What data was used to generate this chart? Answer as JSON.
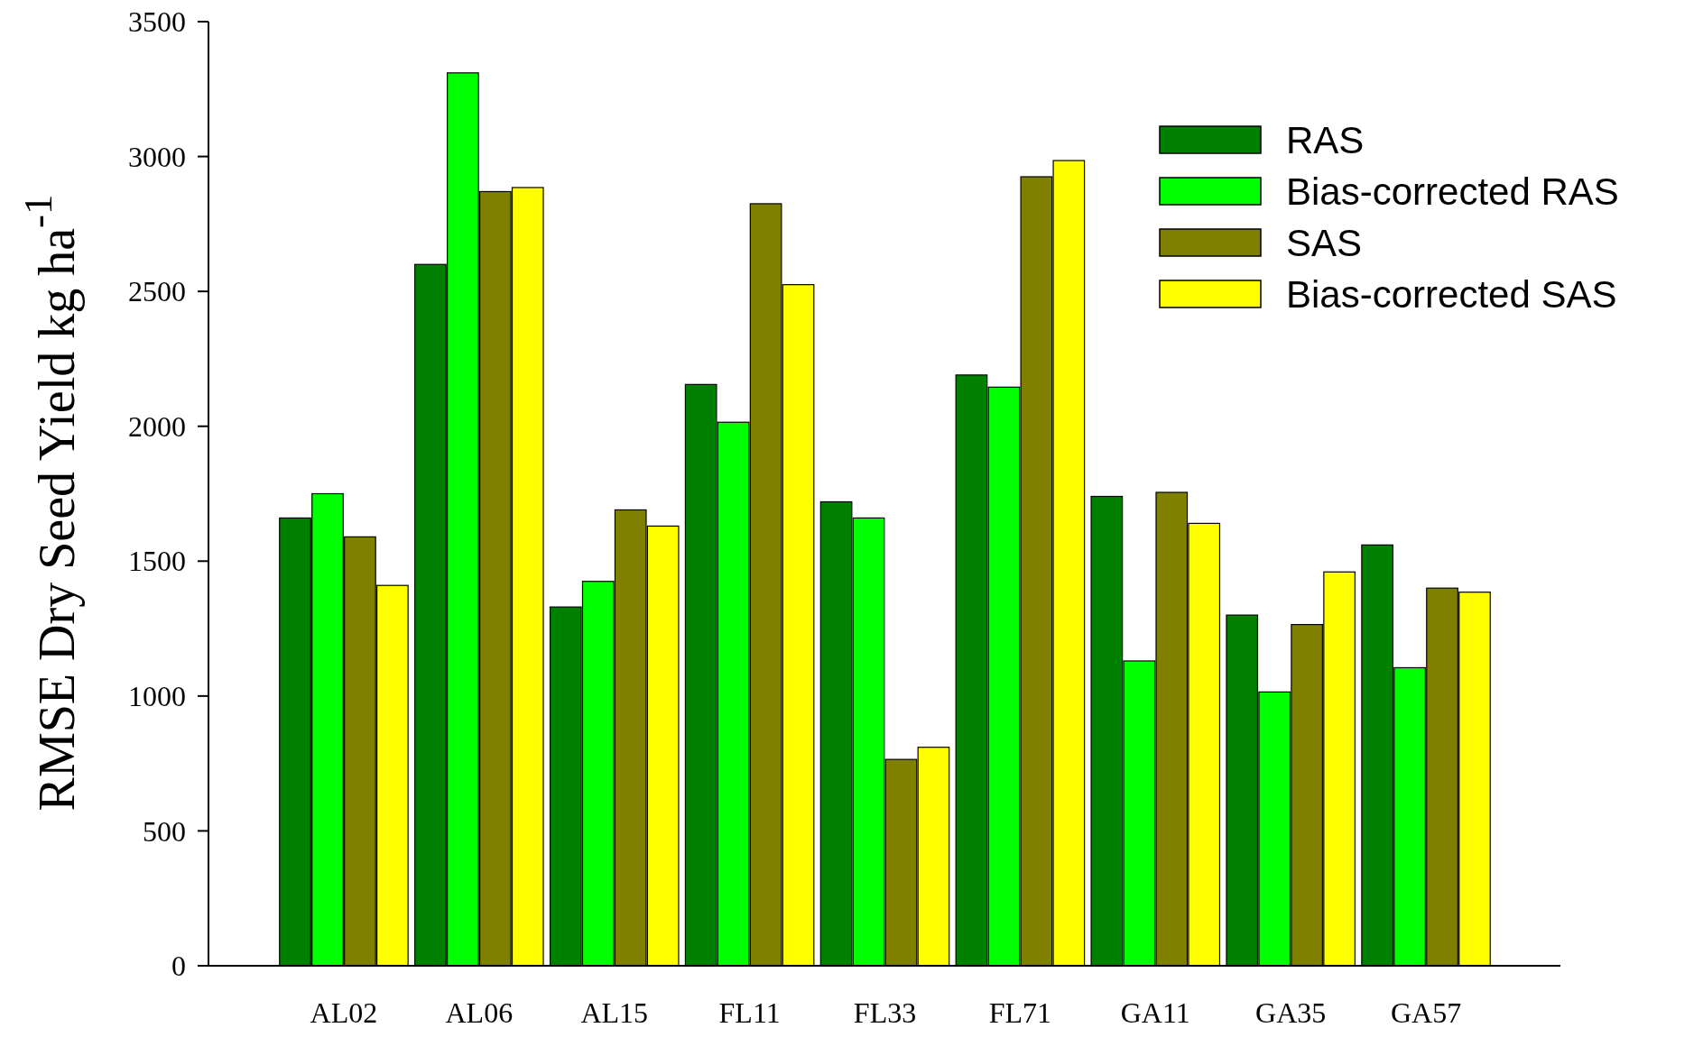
{
  "chart_data": {
    "type": "bar",
    "ylabel": "RMSE Dry Seed Yield kg ha$^{-1}$",
    "categories": [
      "AL02",
      "AL06",
      "AL15",
      "FL11",
      "FL33",
      "FL71",
      "GA11",
      "GA35",
      "GA57"
    ],
    "series": [
      {
        "name": "RAS",
        "color": "#008000",
        "values": [
          1660,
          2600,
          1330,
          2155,
          1720,
          2190,
          1740,
          1300,
          1560
        ]
      },
      {
        "name": "Bias-corrected RAS",
        "color": "#00ff00",
        "values": [
          1750,
          3310,
          1425,
          2015,
          1660,
          2145,
          1130,
          1015,
          1105
        ]
      },
      {
        "name": "SAS",
        "color": "#808000",
        "values": [
          1590,
          2870,
          1690,
          2825,
          765,
          2925,
          1755,
          1265,
          1400
        ]
      },
      {
        "name": "Bias-corrected SAS",
        "color": "#ffff00",
        "values": [
          1410,
          2885,
          1630,
          2525,
          810,
          2985,
          1640,
          1460,
          1385
        ]
      }
    ],
    "ylim": [
      0,
      3500
    ],
    "yticks": [
      0,
      500,
      1000,
      1500,
      2000,
      2500,
      3000,
      3500
    ],
    "legend": "top right"
  }
}
